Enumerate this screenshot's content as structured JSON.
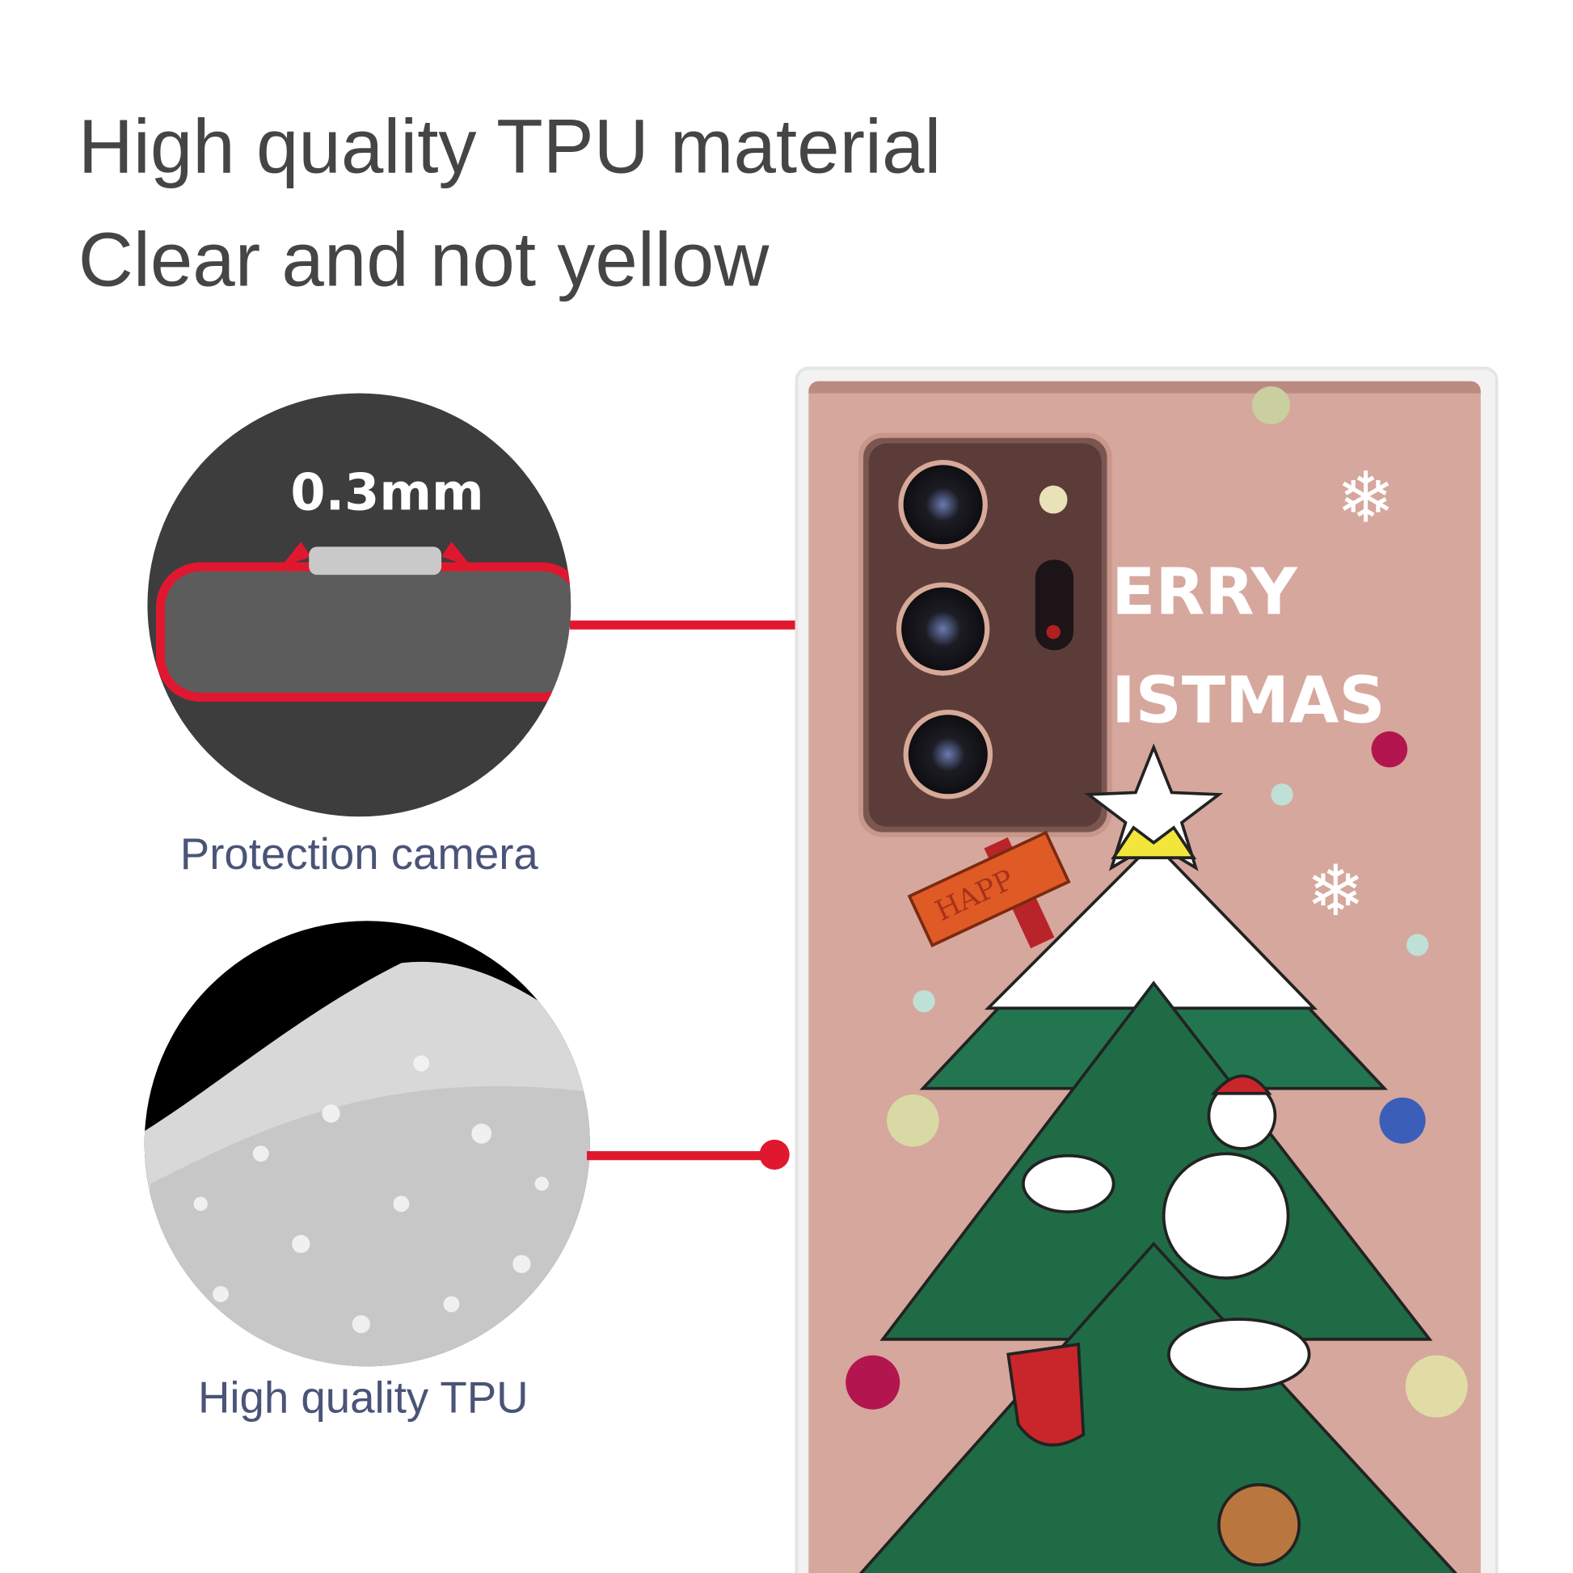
{
  "headline": {
    "line1": "High quality TPU material",
    "line2": "Clear and not yellow"
  },
  "callouts": [
    {
      "label": "Protection camera",
      "measurement": "0.3mm"
    },
    {
      "label": "High quality TPU"
    }
  ],
  "case_print": {
    "text_line1": "ERRY",
    "text_line2": "ISTMAS",
    "sign_text": "HAPP"
  },
  "colors": {
    "accent_red": "#e0182f",
    "circle_dark": "#3d3d3d",
    "phone_rose": "#d6a79d",
    "tree_green": "#1f6b46",
    "caption_blue": "#4a5478",
    "headline_gray": "#454545"
  }
}
